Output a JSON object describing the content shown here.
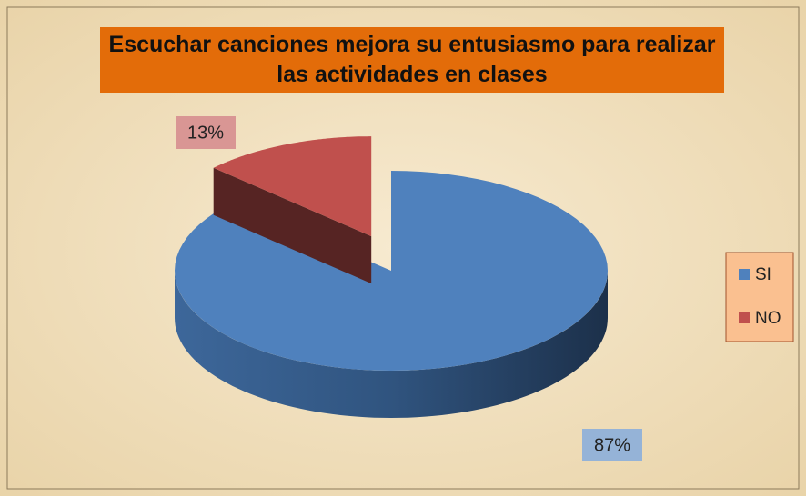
{
  "chart_data": {
    "type": "pie",
    "title": "Escuchar canciones mejora su entusiasmo para realizar las actividades en clases",
    "categories": [
      "SI",
      "NO"
    ],
    "values": [
      87,
      13
    ],
    "value_labels": [
      "87%",
      "13%"
    ],
    "colors": [
      "#4f81bd",
      "#c0504d"
    ],
    "legend": "right"
  }
}
